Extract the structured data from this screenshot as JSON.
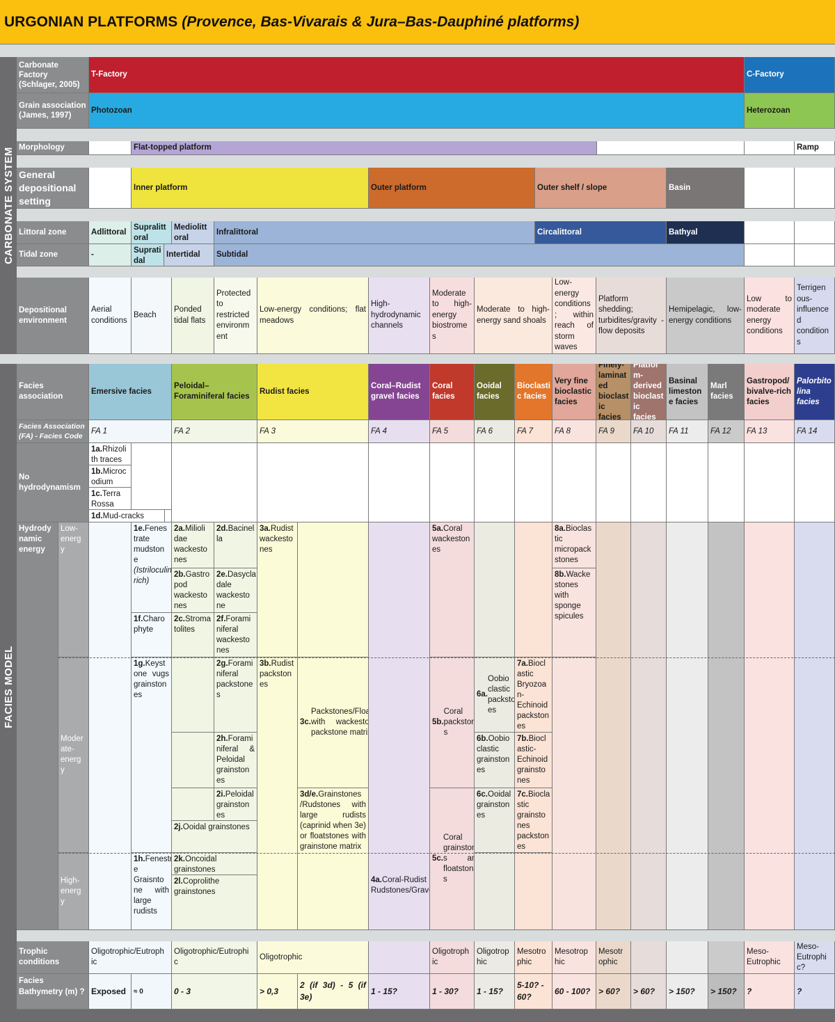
{
  "title": {
    "main": "URGONIAN PLATFORMS ",
    "sub": "(Provence, Bas-Vivarais & Jura–Bas-Dauphiné platforms)"
  },
  "side_labels": {
    "carbonate_system": "CARBONATE SYSTEM",
    "facies_model": "FACIES MODEL"
  },
  "row_labels": {
    "carbonate_factory": "Carbonate Factory (Schlager, 2005)",
    "grain_association": "Grain association (James, 1997)",
    "morphology": "Morphology",
    "general_setting": "General depositional setting",
    "littoral_zone": "Littoral zone",
    "tidal_zone": "Tidal zone",
    "depositional_environment": "Depositional environment",
    "facies_association": "Facies association",
    "fa_code": "Facies Association (FA) - Facies Code",
    "no_hydrodynamism": "No hydrodynamism",
    "hydrodynamic_energy": "Hydrody namic energy",
    "low_energy": "Low-energ y",
    "moderate_energy": "Moder ate-energ y",
    "high_energy": "High-energ y",
    "trophic": "Trophic conditions",
    "bathymetry": "Facies Bathymetry (m) ?"
  },
  "factory": {
    "t": "T-Factory",
    "c": "C-Factory"
  },
  "grain": {
    "photozoan": "Photozoan",
    "heterozoan": "Heterozoan"
  },
  "morphology": {
    "flat": "Flat-topped platform",
    "ramp": "Ramp"
  },
  "setting": {
    "inner": "Inner platform",
    "outer": "Outer platform",
    "shelf": "Outer shelf / slope",
    "basin": "Basin"
  },
  "littoral": {
    "adlittoral": "Adlittoral",
    "supralittoral": "Supralitt oral",
    "mediolittoral": "Mediolitt oral",
    "infralittoral": "Infralittoral",
    "circalittoral": "Circalittoral",
    "bathyal": "Bathyal"
  },
  "tidal": {
    "dash": "-",
    "supratidal": "Suprati dal",
    "intertidal": "Intertidal",
    "subtidal": "Subtidal"
  },
  "environments": [
    "Aerial conditions",
    "Beach",
    "Ponded tidal flats",
    "Protected to restricted environm ent",
    "Low-energy conditions; flat meadows",
    "High-hydrodynamic channels",
    "Moderate to high-energy biostrome s",
    "Moderate to high-energy sand shoals",
    "Low-energy conditions ; within reach of storm waves",
    "Platform shedding; turbidites/gravity -flow deposits",
    "Hemipelagic, low-energy conditions",
    "Low to moderate energy conditions",
    "Terrigen ous-influence d condition s"
  ],
  "facies_assoc": [
    {
      "label": "Emersive facies",
      "code": "FA 1",
      "color": "#9ac7d8"
    },
    {
      "label": "Peloidal–Foraminiferal facies",
      "code": "FA 2",
      "color": "#a6c44d"
    },
    {
      "label": "Rudist facies",
      "code": "FA 3",
      "color": "#f2e542"
    },
    {
      "label": "Coral–Rudist gravel facies",
      "code": "FA 4",
      "color": "#854593"
    },
    {
      "label": "Coral facies",
      "code": "FA 5",
      "color": "#c0392b"
    },
    {
      "label": "Ooidal facies",
      "code": "FA 6",
      "color": "#6b6b2b"
    },
    {
      "label": "Bioclasti c facies",
      "code": "FA 7",
      "color": "#e3762a"
    },
    {
      "label": "Very fine bioclastic facies",
      "code": "FA 8",
      "color": "#e0a79a"
    },
    {
      "label": "Finely-laminat ed bioclast ic facies",
      "code": "FA 9",
      "color": "#b79067"
    },
    {
      "label": "Platfor m-derived bioclast ic facies",
      "code": "FA 10",
      "color": "#9e746c"
    },
    {
      "label": "Basinal limeston e facies",
      "code": "FA 11",
      "color": "#c3c3c3"
    },
    {
      "label": "Marl facies",
      "code": "FA 12",
      "color": "#7a7a7a"
    },
    {
      "label": "Gastropod/ bivalve-rich facies",
      "code": "FA 13",
      "color": "#f2cfcd"
    },
    {
      "label": "Palorbito lina facies",
      "code": "FA 14",
      "color": "#2d3e8f"
    }
  ],
  "facies": {
    "f1a": {
      "code": "1a.",
      "text": "Rhizoli th traces"
    },
    "f1b": {
      "code": "1b.",
      "text": "Microc odium"
    },
    "f1c": {
      "code": "1c.",
      "text": "Terra Rossa"
    },
    "f1d": {
      "code": "1d.",
      "text": "Mud-cracks"
    },
    "f1e": {
      "code": "1e.",
      "text": "Fenes trate mudston e",
      "note": "(Istriloculina-rich)"
    },
    "f1f": {
      "code": "1f.",
      "text": "Charo phyte"
    },
    "f1g": {
      "code": "1g.",
      "text": "Keyst one vugs grainston es"
    },
    "f1h": {
      "code": "1h.",
      "text": "Fenestrat e Graisnto ne with large rudists"
    },
    "f2a": {
      "code": "2a.",
      "text": "Milioli dae wackesto nes"
    },
    "f2b": {
      "code": "2b.",
      "text": "Gastro pod wackesto nes"
    },
    "f2c": {
      "code": "2c.",
      "text": "Stroma tolites"
    },
    "f2d": {
      "code": "2d.",
      "text": "Bacinel la"
    },
    "f2e": {
      "code": "2e.",
      "text": "Dasycla dale wackesto ne"
    },
    "f2f": {
      "code": "2f.",
      "text": "Forami niferal wackesto nes"
    },
    "f2g": {
      "code": "2g.",
      "text": "Forami niferal packstone s"
    },
    "f2h": {
      "code": "2h.",
      "text": "Forami niferal & Peloidal grainston es"
    },
    "f2i": {
      "code": "2i.",
      "text": "Peloidal grainston es"
    },
    "f2j": {
      "code": "2j.",
      "text": "Ooidal grainstones"
    },
    "f2k": {
      "code": "2k.",
      "text": "Oncoidal grainstones"
    },
    "f2l": {
      "code": "2l.",
      "text": "Coprolithe grainstones"
    },
    "f3a": {
      "code": "3a.",
      "text": "Rudist wackesto nes"
    },
    "f3b": {
      "code": "3b.",
      "text": "Rudist packston es"
    },
    "f3c": {
      "code": "3c.",
      "text": "Packstones/Floatstones with wackestone or packstone matrix"
    },
    "f3de": {
      "code": "3d/e.",
      "text": "Grainstones /Rudstones with large rudists (caprinid when 3e) or floatstones with grainstone matrix"
    },
    "f4a": {
      "code": "4a.",
      "text": "Coral-Rudist Rudstones/Gravelstones"
    },
    "f5a": {
      "code": "5a.",
      "text": "Coral wackeston es"
    },
    "f5b": {
      "code": "5b.",
      "text": "Coral packstone s"
    },
    "f5c": {
      "code": "5c.",
      "text": "Coral grainstone s and floatstone s"
    },
    "f6a": {
      "code": "6a.",
      "text": "Oobio clastic packston es"
    },
    "f6b": {
      "code": "6b.",
      "text": "Oobio clastic grainston es"
    },
    "f6c": {
      "code": "6c.",
      "text": "Ooidal grainston es"
    },
    "f7a": {
      "code": "7a.",
      "text": "Biocl astic Bryozoa n-Echinoid packston es"
    },
    "f7b": {
      "code": "7b.",
      "text": "Biocl astic-Echinoid grainsto nes"
    },
    "f7c": {
      "code": "7c.",
      "text": "Biocla stic grainsto nes packston es"
    },
    "f8a": {
      "code": "8a.",
      "text": "Bioclas tic micropack stones"
    },
    "f8b": {
      "code": "8b.",
      "text": "Wacke stones with sponge spicules"
    }
  },
  "trophic": {
    "fa1": "Oligotrophic/Eutroph ic",
    "fa2": "Oligotrophic/Eutrophi c",
    "fa3": "Oligotrophic",
    "fa5": "Oligotroph ic",
    "fa6": "Oligotrop hic",
    "fa7": "Mesotro phic",
    "fa8": "Mesotrop hic",
    "fa9": "Mesotr ophic",
    "fa13": "Meso-Eutrophic",
    "fa14": "Meso-Eutrophi c?"
  },
  "bathymetry": {
    "exposed": "Exposed",
    "approx0": "≈ 0",
    "fa2": "0 - 3",
    "fa3a": "> 0,3",
    "fa3b": "2 (if 3d) - 5 (if 3e)",
    "fa4": "1 - 15?",
    "fa5": "1 - 30?",
    "fa6": "1 - 15?",
    "fa7": "5-10? - 60?",
    "fa8": "60 - 100?",
    "fa9": "> 60?",
    "fa10": "> 60?",
    "fa11": "> 150?",
    "fa12": "> 150?",
    "fa13": "?",
    "fa14": "?"
  },
  "colors": {
    "title_bg": "#fbbf0e",
    "label_bg": "#8a8c8e",
    "side_bg": "#6c6c6e",
    "t_factory": "#c01f2e",
    "c_factory": "#1c72bb",
    "photozoan": "#27aae1",
    "heterozoan": "#8dc652",
    "flat_platform": "#b4a5d5",
    "inner": "#efe33e",
    "outer": "#cd6b2d",
    "shelf": "#d99f88",
    "basin": "#7a7676",
    "infralittoral": "#9bb4d8",
    "circalittoral": "#35599b",
    "bathyal": "#1e2f52"
  }
}
